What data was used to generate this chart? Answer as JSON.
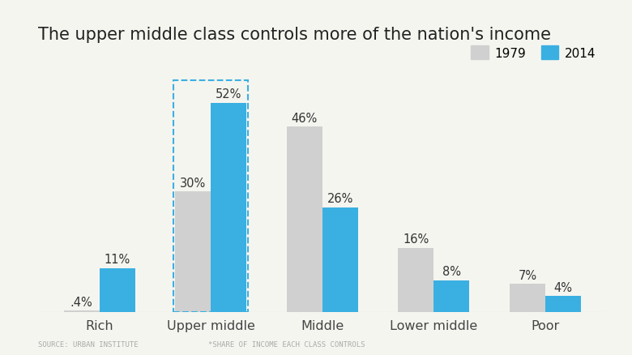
{
  "title": "The upper middle class controls more of the nation's income",
  "categories": [
    "Rich",
    "Upper middle",
    "Middle",
    "Lower middle",
    "Poor"
  ],
  "values_1979": [
    0.4,
    30,
    46,
    16,
    7
  ],
  "values_2014": [
    11,
    52,
    26,
    8,
    4
  ],
  "labels_1979": [
    ".4%",
    "30%",
    "46%",
    "16%",
    "7%"
  ],
  "labels_2014": [
    "11%",
    "52%",
    "26%",
    "8%",
    "4%"
  ],
  "color_1979": "#d0d0d0",
  "color_2014": "#3ab0e2",
  "background_color": "#f5f5f0",
  "legend_labels": [
    "1979",
    "2014"
  ],
  "source_text": "SOURCE: URBAN INSTITUTE",
  "footnote_text": "*SHARE OF INCOME EACH CLASS CONTROLS",
  "highlight_group_index": 1,
  "bar_width": 0.32,
  "ylim": [
    0,
    60
  ],
  "title_fontsize": 15,
  "label_fontsize": 10.5,
  "axis_label_fontsize": 11.5
}
